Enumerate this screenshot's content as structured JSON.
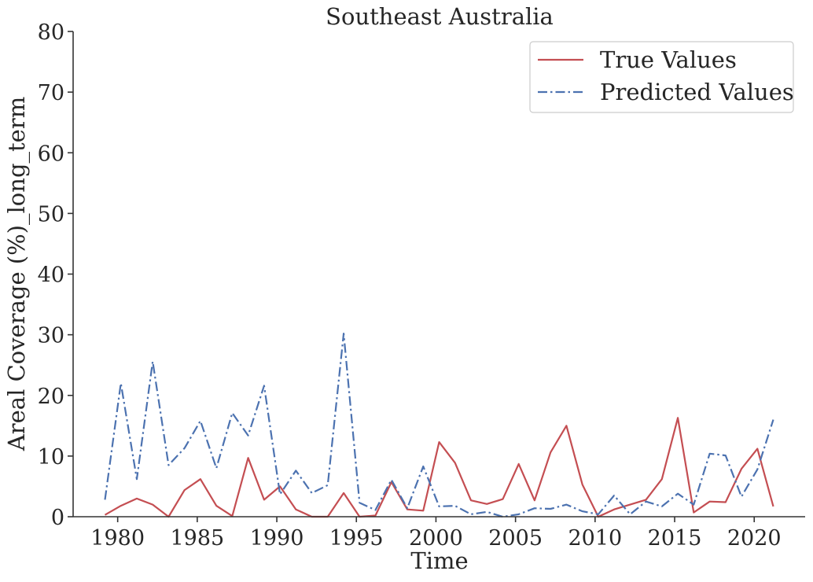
{
  "chart_data": {
    "type": "line",
    "title": "Southeast Australia",
    "xlabel": "Time",
    "ylabel": "Areal Coverage (%)_long_term",
    "xlim": [
      1977.2,
      2023.2
    ],
    "ylim": [
      0,
      80
    ],
    "x_ticks": [
      "1980",
      "1985",
      "1990",
      "1995",
      "2000",
      "2005",
      "2010",
      "2015",
      "2020"
    ],
    "y_ticks": [
      "0",
      "10",
      "20",
      "30",
      "40",
      "50",
      "60",
      "70",
      "80"
    ],
    "legend_position": "top-right",
    "grid": false,
    "x": [
      1979.2,
      1980.2,
      1981.2,
      1982.2,
      1983.2,
      1984.2,
      1985.2,
      1986.2,
      1987.2,
      1988.2,
      1989.2,
      1990.2,
      1991.2,
      1992.2,
      1993.2,
      1994.2,
      1995.2,
      1996.2,
      1997.2,
      1998.2,
      1999.2,
      2000.2,
      2001.2,
      2002.2,
      2003.2,
      2004.2,
      2005.2,
      2006.2,
      2007.2,
      2008.2,
      2009.2,
      2010.2,
      2011.2,
      2012.2,
      2013.2,
      2014.2,
      2015.2,
      2016.2,
      2017.2,
      2018.2,
      2019.2,
      2020.2,
      2021.2
    ],
    "series": [
      {
        "name": "True Values",
        "color": "#c44e52",
        "style": "solid",
        "values": [
          0.3,
          1.8,
          3.0,
          2.0,
          0.0,
          4.4,
          6.2,
          1.8,
          0.1,
          9.7,
          2.8,
          5.0,
          1.2,
          0.0,
          0.0,
          3.9,
          0.0,
          0.2,
          5.7,
          1.2,
          1.0,
          12.3,
          8.9,
          2.7,
          2.1,
          2.9,
          8.7,
          2.7,
          10.6,
          15.0,
          5.3,
          0.0,
          1.2,
          2.0,
          2.8,
          6.2,
          16.3,
          0.7,
          2.5,
          2.4,
          7.9,
          11.2,
          1.7
        ]
      },
      {
        "name": "Predicted Values",
        "color": "#4c72b0",
        "style": "dashdot",
        "values": [
          2.8,
          22.0,
          6.2,
          25.6,
          8.5,
          11.3,
          15.8,
          8.0,
          17.1,
          13.4,
          21.6,
          3.7,
          7.6,
          3.9,
          5.2,
          30.2,
          2.3,
          1.1,
          6.1,
          1.4,
          8.3,
          1.7,
          1.8,
          0.4,
          0.8,
          0.0,
          0.4,
          1.4,
          1.3,
          2.0,
          0.9,
          0.4,
          3.5,
          0.4,
          2.5,
          1.7,
          3.8,
          2.0,
          10.4,
          10.1,
          3.3,
          7.8,
          16.0
        ]
      }
    ]
  }
}
